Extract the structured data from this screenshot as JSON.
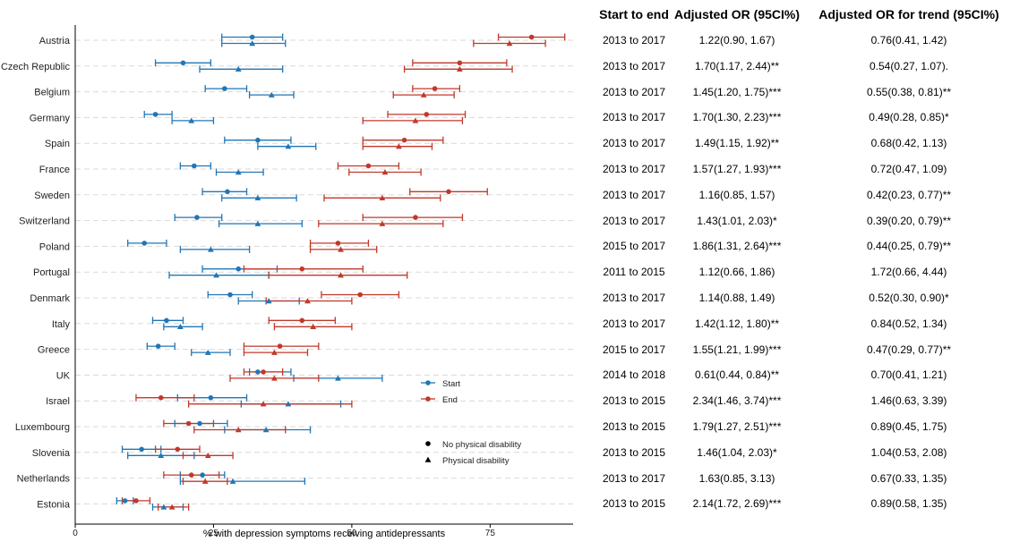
{
  "colors": {
    "start": "#2176b5",
    "end": "#c0392b"
  },
  "chart_data": {
    "type": "scatter",
    "xlabel": "% with depression symptoms receiving antidepressants",
    "xlim": [
      0,
      90
    ],
    "xticks": [
      0,
      25,
      50,
      75
    ],
    "grid": "horizontal dashed",
    "legend": {
      "placement": "right-inside",
      "series": [
        {
          "name": "Start",
          "color": "#2176b5"
        },
        {
          "name": "End",
          "color": "#c0392b"
        }
      ],
      "shapes": [
        {
          "name": "No physical disability",
          "shape": "circle"
        },
        {
          "name": "Physical disability",
          "shape": "triangle"
        }
      ]
    },
    "countries": [
      {
        "name": "Austria",
        "start_nd": [
          32,
          26.5,
          37.5
        ],
        "start_pd": [
          32,
          26.5,
          38
        ],
        "end_nd": [
          82.5,
          76.5,
          88.5
        ],
        "end_pd": [
          78.5,
          72,
          85
        ]
      },
      {
        "name": "Czech Republic",
        "start_nd": [
          19.5,
          14.5,
          24.5
        ],
        "start_pd": [
          29.5,
          22.5,
          37.5
        ],
        "end_nd": [
          69.5,
          61,
          78
        ],
        "end_pd": [
          69.5,
          59.5,
          79
        ]
      },
      {
        "name": "Belgium",
        "start_nd": [
          27,
          23.5,
          31
        ],
        "start_pd": [
          35.5,
          31.5,
          39.5
        ],
        "end_nd": [
          65,
          61,
          69.5
        ],
        "end_pd": [
          63,
          57.5,
          68.5
        ]
      },
      {
        "name": "Germany",
        "start_nd": [
          14.5,
          12.5,
          17.5
        ],
        "start_pd": [
          21,
          17.5,
          25
        ],
        "end_nd": [
          63.5,
          56.5,
          70.5
        ],
        "end_pd": [
          61.5,
          52,
          70
        ]
      },
      {
        "name": "Spain",
        "start_nd": [
          33,
          27,
          39
        ],
        "start_pd": [
          38.5,
          33,
          43.5
        ],
        "end_nd": [
          59.5,
          52,
          66.5
        ],
        "end_pd": [
          58.5,
          52,
          64.5
        ]
      },
      {
        "name": "France",
        "start_nd": [
          21.5,
          19,
          24.5
        ],
        "start_pd": [
          29.5,
          25.5,
          34
        ],
        "end_nd": [
          53,
          47.5,
          58.5
        ],
        "end_pd": [
          56,
          49.5,
          62.5
        ]
      },
      {
        "name": "Sweden",
        "start_nd": [
          27.5,
          23,
          31
        ],
        "start_pd": [
          33,
          26.5,
          40
        ],
        "end_nd": [
          67.5,
          60.5,
          74.5
        ],
        "end_pd": [
          55.5,
          45,
          66
        ]
      },
      {
        "name": "Switzerland",
        "start_nd": [
          22,
          18,
          26.5
        ],
        "start_pd": [
          33,
          26,
          41
        ],
        "end_nd": [
          61.5,
          52,
          70
        ],
        "end_pd": [
          55.5,
          44,
          66.5
        ]
      },
      {
        "name": "Poland",
        "start_nd": [
          12.5,
          9.5,
          16.5
        ],
        "start_pd": [
          24.5,
          19,
          31.5
        ],
        "end_nd": [
          47.5,
          42.5,
          53
        ],
        "end_pd": [
          48,
          42.5,
          54.5
        ]
      },
      {
        "name": "Portugal",
        "start_nd": [
          29.5,
          23,
          36.5
        ],
        "start_pd": [
          25.5,
          17,
          35
        ],
        "end_nd": [
          41,
          30.5,
          52
        ],
        "end_pd": [
          48,
          35,
          60
        ]
      },
      {
        "name": "Denmark",
        "start_nd": [
          28,
          24,
          32
        ],
        "start_pd": [
          35,
          29.5,
          40.5
        ],
        "end_nd": [
          51.5,
          44.5,
          58.5
        ],
        "end_pd": [
          42,
          34.5,
          50
        ]
      },
      {
        "name": "Italy",
        "start_nd": [
          16.5,
          14,
          19.5
        ],
        "start_pd": [
          19,
          16,
          23
        ],
        "end_nd": [
          41,
          35,
          47
        ],
        "end_pd": [
          43,
          36,
          50
        ]
      },
      {
        "name": "Greece",
        "start_nd": [
          15,
          13,
          18
        ],
        "start_pd": [
          24,
          21,
          28
        ],
        "end_nd": [
          37,
          30.5,
          44
        ],
        "end_pd": [
          36,
          30.5,
          42
        ]
      },
      {
        "name": "UK",
        "start_nd": [
          33,
          31.5,
          39
        ],
        "start_pd": [
          47.5,
          39.5,
          55.5
        ],
        "end_nd": [
          34,
          30.5,
          37.5
        ],
        "end_pd": [
          36,
          28,
          44
        ]
      },
      {
        "name": "Israel",
        "start_nd": [
          24.5,
          18.5,
          31
        ],
        "start_pd": [
          38.5,
          30,
          48
        ],
        "end_nd": [
          15.5,
          11,
          21.5
        ],
        "end_pd": [
          34,
          20.5,
          50
        ]
      },
      {
        "name": "Luxembourg",
        "start_nd": [
          22.5,
          18,
          27.5
        ],
        "start_pd": [
          34.5,
          27,
          42.5
        ],
        "end_nd": [
          20.5,
          16,
          25
        ],
        "end_pd": [
          29.5,
          21.5,
          38
        ]
      },
      {
        "name": "Slovenia",
        "start_nd": [
          12,
          8.5,
          15.5
        ],
        "start_pd": [
          15.5,
          9.5,
          21.5
        ],
        "end_nd": [
          18.5,
          14.5,
          22.5
        ],
        "end_pd": [
          24,
          19.5,
          28.5
        ]
      },
      {
        "name": "Netherlands",
        "start_nd": [
          23,
          19,
          27
        ],
        "start_pd": [
          28.5,
          19,
          41.5
        ],
        "end_nd": [
          21,
          16,
          26
        ],
        "end_pd": [
          23.5,
          19.5,
          27.5
        ]
      },
      {
        "name": "Estonia",
        "start_nd": [
          9,
          7.5,
          10.5
        ],
        "start_pd": [
          16,
          14,
          19.5
        ],
        "end_nd": [
          11,
          8.5,
          13.5
        ],
        "end_pd": [
          17.5,
          15,
          20.5
        ]
      }
    ]
  },
  "table": {
    "headers": [
      "Start to end",
      "Adjusted OR (95CI%)",
      "Adjusted OR for trend (95CI%)"
    ],
    "rows": [
      [
        "2013 to 2017",
        "1.22(0.90, 1.67)",
        "0.76(0.41, 1.42)"
      ],
      [
        "2013 to 2017",
        "1.70(1.17, 2.44)**",
        "0.54(0.27, 1.07)."
      ],
      [
        "2013 to 2017",
        "1.45(1.20, 1.75)***",
        "0.55(0.38, 0.81)**"
      ],
      [
        "2013 to 2017",
        "1.70(1.30, 2.23)***",
        "0.49(0.28, 0.85)*"
      ],
      [
        "2013 to 2017",
        "1.49(1.15, 1.92)**",
        "0.68(0.42, 1.13)"
      ],
      [
        "2013 to 2017",
        "1.57(1.27, 1.93)***",
        "0.72(0.47, 1.09)"
      ],
      [
        "2013 to 2017",
        "1.16(0.85, 1.57)",
        "0.42(0.23, 0.77)**"
      ],
      [
        "2013 to 2017",
        "1.43(1.01, 2.03)*",
        "0.39(0.20, 0.79)**"
      ],
      [
        "2015 to 2017",
        "1.86(1.31, 2.64)***",
        "0.44(0.25, 0.79)**"
      ],
      [
        "2011 to 2015",
        "1.12(0.66, 1.86)",
        "1.72(0.66, 4.44)"
      ],
      [
        "2013 to 2017",
        "1.14(0.88, 1.49)",
        "0.52(0.30, 0.90)*"
      ],
      [
        "2013 to 2017",
        "1.42(1.12, 1.80)**",
        "0.84(0.52, 1.34)"
      ],
      [
        "2015 to 2017",
        "1.55(1.21, 1.99)***",
        "0.47(0.29, 0.77)**"
      ],
      [
        "2014 to 2018",
        "0.61(0.44, 0.84)**",
        "0.70(0.41, 1.21)"
      ],
      [
        "2013 to 2015",
        "2.34(1.46, 3.74)***",
        "1.46(0.63, 3.39)"
      ],
      [
        "2013 to 2015",
        "1.79(1.27, 2.51)***",
        "0.89(0.45, 1.75)"
      ],
      [
        "2013 to 2015",
        "1.46(1.04, 2.03)*",
        "1.04(0.53, 2.08)"
      ],
      [
        "2013 to 2017",
        "1.63(0.85, 3.13)",
        "0.67(0.33, 1.35)"
      ],
      [
        "2013 to 2015",
        "2.14(1.72, 2.69)***",
        "0.89(0.58, 1.35)"
      ]
    ]
  }
}
